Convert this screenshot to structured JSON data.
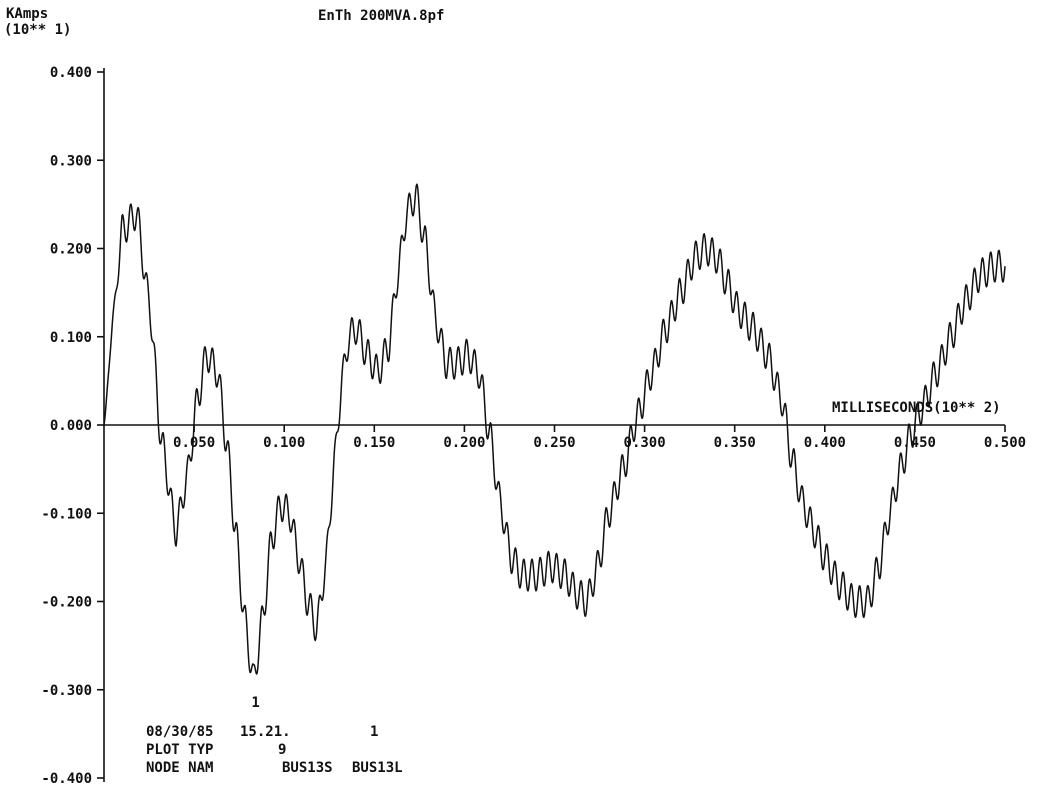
{
  "chart_data": {
    "type": "line",
    "title": "EnTh 200MVA.8pf",
    "ylabel": "KAmps",
    "ylabel_scale": "(10** 1)",
    "xlabel": "MILLISECONDS(10** 2)",
    "xlim": [
      0.0,
      0.5
    ],
    "ylim": [
      -0.4,
      0.4
    ],
    "xticks": [
      "0.050",
      "0.100",
      "0.150",
      "0.200",
      "0.250",
      "0.300",
      "0.350",
      "0.400",
      "0.450",
      "0.500"
    ],
    "xtick_values": [
      0.05,
      0.1,
      0.15,
      0.2,
      0.25,
      0.3,
      0.35,
      0.4,
      0.45,
      0.5
    ],
    "yticks": [
      "0.400",
      "0.300",
      "0.200",
      "0.100",
      "0.000",
      "-0.100",
      "-0.200",
      "-0.300",
      "-0.400"
    ],
    "ytick_values": [
      0.4,
      0.3,
      0.2,
      0.1,
      0.0,
      -0.1,
      -0.2,
      -0.3,
      -0.4
    ],
    "grid": false,
    "ripple_amplitude": 0.018,
    "ripple_count": 110,
    "series": [
      {
        "marker_label": "1",
        "x": [
          0.0,
          0.005,
          0.01,
          0.018,
          0.025,
          0.032,
          0.04,
          0.046,
          0.052,
          0.057,
          0.063,
          0.068,
          0.073,
          0.078,
          0.083,
          0.088,
          0.093,
          0.098,
          0.103,
          0.108,
          0.113,
          0.118,
          0.123,
          0.128,
          0.132,
          0.136,
          0.14,
          0.146,
          0.152,
          0.158,
          0.163,
          0.168,
          0.173,
          0.178,
          0.184,
          0.19,
          0.196,
          0.202,
          0.208,
          0.214,
          0.22,
          0.226,
          0.232,
          0.24,
          0.248,
          0.256,
          0.262,
          0.268,
          0.274,
          0.28,
          0.288,
          0.296,
          0.304,
          0.312,
          0.32,
          0.328,
          0.334,
          0.34,
          0.346,
          0.352,
          0.36,
          0.368,
          0.376,
          0.382,
          0.388,
          0.394,
          0.4,
          0.408,
          0.416,
          0.424,
          0.43,
          0.436,
          0.442,
          0.448,
          0.454,
          0.462,
          0.47,
          0.478,
          0.486,
          0.494,
          0.5
        ],
        "y": [
          0.0,
          0.12,
          0.22,
          0.24,
          0.14,
          -0.02,
          -0.12,
          -0.06,
          0.03,
          0.08,
          0.06,
          -0.02,
          -0.12,
          -0.22,
          -0.29,
          -0.22,
          -0.13,
          -0.09,
          -0.1,
          -0.15,
          -0.2,
          -0.23,
          -0.16,
          -0.04,
          0.05,
          0.1,
          0.11,
          0.08,
          0.06,
          0.09,
          0.17,
          0.24,
          0.26,
          0.21,
          0.12,
          0.07,
          0.07,
          0.08,
          0.06,
          -0.01,
          -0.09,
          -0.15,
          -0.17,
          -0.17,
          -0.16,
          -0.17,
          -0.19,
          -0.2,
          -0.16,
          -0.1,
          -0.05,
          0.01,
          0.06,
          0.11,
          0.15,
          0.19,
          0.2,
          0.19,
          0.16,
          0.13,
          0.11,
          0.08,
          0.03,
          -0.04,
          -0.09,
          -0.12,
          -0.15,
          -0.18,
          -0.2,
          -0.2,
          -0.16,
          -0.1,
          -0.05,
          -0.01,
          0.02,
          0.06,
          0.1,
          0.14,
          0.17,
          0.18,
          0.18
        ]
      }
    ],
    "footer": {
      "date": "08/30/85",
      "time": "15.21.",
      "curve_number": "1",
      "plot_typ_label": "PLOT TYP",
      "plot_typ_value": "9",
      "node_nam_label": "NODE NAM",
      "node_from": "BUS13S",
      "node_to": "BUS13L"
    }
  }
}
